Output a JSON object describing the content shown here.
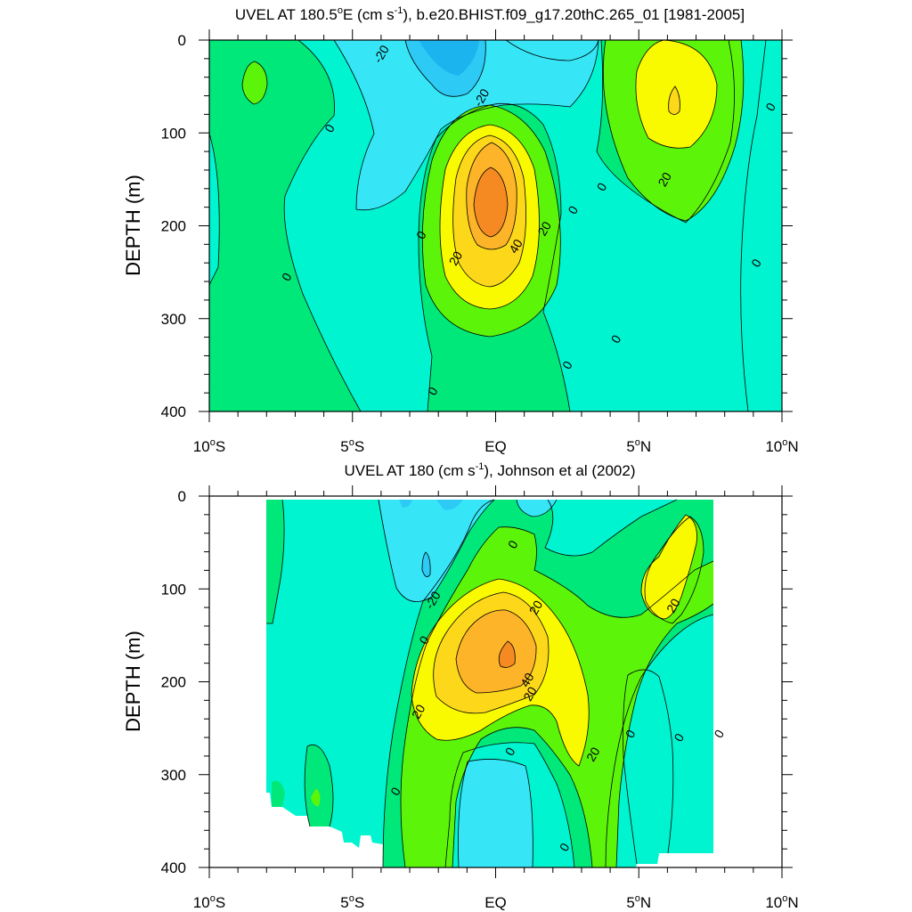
{
  "chart_data": [
    {
      "type": "contour",
      "title_parts": [
        "UVEL AT 180.5",
        "o",
        "E (cm s",
        "-1",
        "), b.e20.BHIST.f09_g17.20thC.265_01 [1981-2005]"
      ],
      "xlabel": "",
      "ylabel": "DEPTH (m)",
      "xlim": [
        -10,
        10
      ],
      "ylim": [
        400,
        0
      ],
      "x_ticks": [
        {
          "value": -10,
          "parts": [
            "10",
            "o",
            "S"
          ]
        },
        {
          "value": -5,
          "parts": [
            "5",
            "o",
            "S"
          ]
        },
        {
          "value": 0,
          "parts": [
            "EQ"
          ]
        },
        {
          "value": 5,
          "parts": [
            "5",
            "o",
            "N"
          ]
        },
        {
          "value": 10,
          "parts": [
            "10",
            "o",
            "N"
          ]
        }
      ],
      "y_ticks": [
        0,
        100,
        200,
        300,
        400
      ],
      "data_extent": {
        "x": [
          -10,
          10
        ],
        "y": [
          0,
          400
        ]
      },
      "contour_interval": 10,
      "features": [
        {
          "kind": "jet",
          "x": 0.0,
          "depth": 175,
          "max_value": 55
        },
        {
          "kind": "jet",
          "x": 6.5,
          "depth": 70,
          "max_value": 28
        },
        {
          "kind": "minimum",
          "x": -1.0,
          "depth": 20,
          "min_value": -28
        },
        {
          "kind": "minimum",
          "x": 3.2,
          "depth": 10,
          "min_value": -12
        },
        {
          "kind": "maximum",
          "x": -8.2,
          "depth": 45,
          "max_value": 8
        }
      ],
      "contour_labels": [
        {
          "text": "-20",
          "x": -4.0,
          "depth": 15
        },
        {
          "text": "-20",
          "x": -0.5,
          "depth": 62
        },
        {
          "text": "0",
          "x": -5.8,
          "depth": 95
        },
        {
          "text": "0",
          "x": -7.3,
          "depth": 255
        },
        {
          "text": "0",
          "x": -2.6,
          "depth": 210
        },
        {
          "text": "0",
          "x": -2.2,
          "depth": 378
        },
        {
          "text": "20",
          "x": -1.4,
          "depth": 235
        },
        {
          "text": "40",
          "x": 0.7,
          "depth": 222
        },
        {
          "text": "20",
          "x": 1.7,
          "depth": 203
        },
        {
          "text": "0",
          "x": 2.7,
          "depth": 183
        },
        {
          "text": "0",
          "x": 3.7,
          "depth": 158
        },
        {
          "text": "0",
          "x": 4.2,
          "depth": 322
        },
        {
          "text": "0",
          "x": 2.5,
          "depth": 350
        },
        {
          "text": "20",
          "x": 5.9,
          "depth": 150
        },
        {
          "text": "0",
          "x": 9.6,
          "depth": 72
        },
        {
          "text": "0",
          "x": 9.1,
          "depth": 240
        }
      ]
    },
    {
      "type": "contour",
      "title_parts": [
        "UVEL AT 180 (cm s",
        "-1",
        "), Johnson et al (2002)"
      ],
      "xlabel": "",
      "ylabel": "DEPTH (m)",
      "xlim": [
        -10,
        10
      ],
      "ylim": [
        400,
        0
      ],
      "x_ticks": [
        {
          "value": -10,
          "parts": [
            "10",
            "o",
            "S"
          ]
        },
        {
          "value": -5,
          "parts": [
            "5",
            "o",
            "S"
          ]
        },
        {
          "value": 0,
          "parts": [
            "EQ"
          ]
        },
        {
          "value": 5,
          "parts": [
            "5",
            "o",
            "N"
          ]
        },
        {
          "value": 10,
          "parts": [
            "10",
            "o",
            "N"
          ]
        }
      ],
      "y_ticks": [
        0,
        100,
        200,
        300,
        400
      ],
      "data_extent": {
        "x": [
          -8,
          8
        ],
        "y": [
          5,
          400
        ]
      },
      "contour_interval": 10,
      "features": [
        {
          "kind": "jet",
          "x": 0.8,
          "depth": 165,
          "max_value": 52
        },
        {
          "kind": "jet",
          "x": 6.3,
          "depth": 85,
          "max_value": 24
        },
        {
          "kind": "minimum",
          "x": -2.2,
          "depth": 70,
          "min_value": -25
        },
        {
          "kind": "minimum",
          "x": 0.5,
          "depth": 345,
          "min_value": -12
        }
      ],
      "contour_labels": [
        {
          "text": "0",
          "x": 0.6,
          "depth": 52
        },
        {
          "text": "-20",
          "x": -2.2,
          "depth": 112
        },
        {
          "text": "20",
          "x": 1.4,
          "depth": 120
        },
        {
          "text": "0",
          "x": -2.5,
          "depth": 155
        },
        {
          "text": "20",
          "x": 6.2,
          "depth": 118
        },
        {
          "text": "40",
          "x": 1.1,
          "depth": 198
        },
        {
          "text": "20",
          "x": 1.2,
          "depth": 213
        },
        {
          "text": "20",
          "x": -2.7,
          "depth": 232
        },
        {
          "text": "0",
          "x": 0.5,
          "depth": 275
        },
        {
          "text": "20",
          "x": 3.4,
          "depth": 278
        },
        {
          "text": "0",
          "x": 4.7,
          "depth": 256
        },
        {
          "text": "0",
          "x": 6.4,
          "depth": 260
        },
        {
          "text": "0",
          "x": 7.8,
          "depth": 256
        },
        {
          "text": "0",
          "x": -3.5,
          "depth": 318
        },
        {
          "text": "0",
          "x": 2.4,
          "depth": 378
        }
      ]
    }
  ],
  "colors": {
    "lt_m30": "#1cb4ee",
    "m30_m20": "#2ccaf4",
    "m20_m10": "#36e6f7",
    "m10_0": "#00f4d0",
    "0_10": "#00e87a",
    "10_20": "#5cf50a",
    "20_30": "#f9f900",
    "30_40": "#fdd81a",
    "40_50": "#fdb428",
    "gt_50": "#f58a22",
    "contour_line": "#000000",
    "frame": "#000000"
  }
}
